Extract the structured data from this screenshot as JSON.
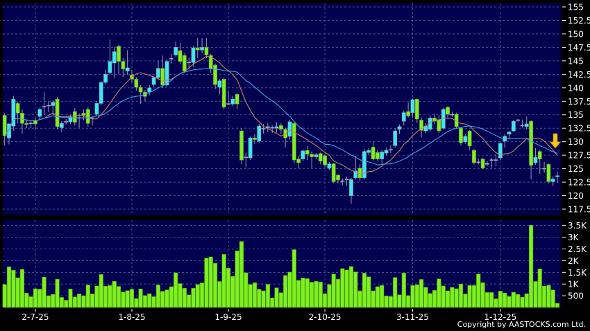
{
  "copyright": "Copyright by AASTOCKS.com Ltd.",
  "colors": {
    "panel_bg": "#00004e",
    "grid": "#5a64a8",
    "up": "#3ce8f0",
    "down": "#7ef01e",
    "doji": "#a8a8c8",
    "wick": "#9a9ab8",
    "volume": "#7ef01e",
    "ma_short": "#c8845a",
    "ma_long": "#3fa2e6",
    "arrow": "#f5c518"
  },
  "chart_data": [
    {
      "type": "candlestick",
      "ylim": [
        117.5,
        155
      ],
      "y_ticks": [
        "155",
        "152.5",
        "150",
        "147.5",
        "145",
        "142.5",
        "140",
        "137.5",
        "135",
        "132.5",
        "130",
        "127.5",
        "125",
        "122.5",
        "120",
        "117.5"
      ],
      "grid": true,
      "x_labels": [
        {
          "label": "2-7-25",
          "index": 7
        },
        {
          "label": "1-8-25",
          "index": 29
        },
        {
          "label": "1-9-25",
          "index": 51
        },
        {
          "label": "2-10-25",
          "index": 73
        },
        {
          "label": "3-11-25",
          "index": 93
        },
        {
          "label": "1-12-25",
          "index": 113
        }
      ],
      "moving_averages": [
        {
          "period": 10,
          "color": "#c8845a"
        },
        {
          "period": 20,
          "color": "#3fa2e6"
        }
      ],
      "signal": {
        "type": "down-arrow",
        "color": "#f5c518"
      },
      "ohlc": [
        [
          134.9,
          135.3,
          129.3,
          131.1
        ],
        [
          130.7,
          133.5,
          129.5,
          133.3
        ],
        [
          132.9,
          138.5,
          132.0,
          137.9
        ],
        [
          137.1,
          137.4,
          133.4,
          135.3
        ],
        [
          135.3,
          136.0,
          131.5,
          133.4
        ],
        [
          133.4,
          134.0,
          132.5,
          133.2
        ],
        [
          133.3,
          134.0,
          132.5,
          133.4
        ],
        [
          134.0,
          134.5,
          132.3,
          133.3
        ],
        [
          134.7,
          136.3,
          134.2,
          136.0
        ],
        [
          136.4,
          139.2,
          135.0,
          136.5
        ],
        [
          136.6,
          137.5,
          135.5,
          136.7
        ],
        [
          136.7,
          137.7,
          135.0,
          137.3
        ],
        [
          137.9,
          138.3,
          132.3,
          132.8
        ],
        [
          132.6,
          133.8,
          131.8,
          133.4
        ],
        [
          133.6,
          134.2,
          133.2,
          133.7
        ],
        [
          133.7,
          135.0,
          133.3,
          134.6
        ],
        [
          135.6,
          136.2,
          133.0,
          133.6
        ],
        [
          134.4,
          135.2,
          132.6,
          134.4
        ],
        [
          135.3,
          136.0,
          134.0,
          134.9
        ],
        [
          136.0,
          136.4,
          132.8,
          133.4
        ],
        [
          134.2,
          134.8,
          133.0,
          134.3
        ],
        [
          135.1,
          137.5,
          134.8,
          137.1
        ],
        [
          137.1,
          141.3,
          136.8,
          141.0
        ],
        [
          141.0,
          143.4,
          140.6,
          142.5
        ],
        [
          142.8,
          149.0,
          142.3,
          144.9
        ],
        [
          144.6,
          147.6,
          141.8,
          146.7
        ],
        [
          147.7,
          148.0,
          142.5,
          144.9
        ],
        [
          144.9,
          145.5,
          142.0,
          143.5
        ],
        [
          143.1,
          147.0,
          142.4,
          143.7
        ],
        [
          142.4,
          143.3,
          141.0,
          141.6
        ],
        [
          141.6,
          142.0,
          139.5,
          140.1
        ],
        [
          140.1,
          140.5,
          137.0,
          139.2
        ],
        [
          139.2,
          139.6,
          137.5,
          138.4
        ],
        [
          139.2,
          140.5,
          138.6,
          140.0
        ],
        [
          140.6,
          142.2,
          140.2,
          141.9
        ],
        [
          141.9,
          145.0,
          141.5,
          143.6
        ],
        [
          143.6,
          146.0,
          140.0,
          140.5
        ],
        [
          140.5,
          145.3,
          140.2,
          144.9
        ],
        [
          145.3,
          146.3,
          144.5,
          145.4
        ],
        [
          146.1,
          148.6,
          145.8,
          147.5
        ],
        [
          146.9,
          148.3,
          144.5,
          144.9
        ],
        [
          146.0,
          146.4,
          142.8,
          143.1
        ],
        [
          144.6,
          145.6,
          143.4,
          144.7
        ],
        [
          144.7,
          147.8,
          143.9,
          147.4
        ],
        [
          147.4,
          149.2,
          145.5,
          147.0
        ],
        [
          147.0,
          149.2,
          146.4,
          147.5
        ],
        [
          147.5,
          149.2,
          145.5,
          146.1
        ],
        [
          146.0,
          146.3,
          142.8,
          143.6
        ],
        [
          144.2,
          144.5,
          139.8,
          140.6
        ],
        [
          140.1,
          141.6,
          138.8,
          141.3
        ],
        [
          141.6,
          141.9,
          136.0,
          136.4
        ],
        [
          137.0,
          139.5,
          136.8,
          137.0
        ],
        [
          137.0,
          138.5,
          136.6,
          137.9
        ],
        [
          138.8,
          139.0,
          136.0,
          137.0
        ],
        [
          132.0,
          132.5,
          125.8,
          126.6
        ],
        [
          127.0,
          128.0,
          125.2,
          127.1
        ],
        [
          127.0,
          131.0,
          126.6,
          130.7
        ],
        [
          130.7,
          131.4,
          129.6,
          130.4
        ],
        [
          130.1,
          133.3,
          129.8,
          132.9
        ],
        [
          132.3,
          133.3,
          131.5,
          132.4
        ],
        [
          132.6,
          133.4,
          131.8,
          132.8
        ],
        [
          132.5,
          133.0,
          131.6,
          132.6
        ],
        [
          132.5,
          133.6,
          131.7,
          132.8
        ],
        [
          133.0,
          133.4,
          131.5,
          132.3
        ],
        [
          132.3,
          132.6,
          129.0,
          130.7
        ],
        [
          131.0,
          134.0,
          130.5,
          133.7
        ],
        [
          133.4,
          133.8,
          126.0,
          126.6
        ],
        [
          126.8,
          127.4,
          125.1,
          126.1
        ],
        [
          126.8,
          128.6,
          126.4,
          128.3
        ],
        [
          128.4,
          129.2,
          126.6,
          127.7
        ],
        [
          127.7,
          128.2,
          125.1,
          127.2
        ],
        [
          127.2,
          127.9,
          126.8,
          127.6
        ],
        [
          127.8,
          128.0,
          125.8,
          126.4
        ],
        [
          127.4,
          127.6,
          125.2,
          125.7
        ],
        [
          125.1,
          126.2,
          124.7,
          125.9
        ],
        [
          125.9,
          126.1,
          122.3,
          122.6
        ],
        [
          123.8,
          124.0,
          122.3,
          122.9
        ],
        [
          122.7,
          123.2,
          122.0,
          122.7
        ],
        [
          122.9,
          123.5,
          121.8,
          123.0
        ],
        [
          120.0,
          123.3,
          118.5,
          123.0
        ],
        [
          123.3,
          127.4,
          123.0,
          124.6
        ],
        [
          125.1,
          125.8,
          122.6,
          123.3
        ],
        [
          123.3,
          128.6,
          123.0,
          128.2
        ],
        [
          128.0,
          128.8,
          127.5,
          128.4
        ],
        [
          129.0,
          130.0,
          126.5,
          126.8
        ],
        [
          128.0,
          128.4,
          126.5,
          126.8
        ],
        [
          126.8,
          128.5,
          125.8,
          128.1
        ],
        [
          127.9,
          128.9,
          127.5,
          128.4
        ],
        [
          128.4,
          129.3,
          127.9,
          128.5
        ],
        [
          129.3,
          132.5,
          128.9,
          132.0
        ],
        [
          132.3,
          133.2,
          131.5,
          132.8
        ],
        [
          133.8,
          135.8,
          133.0,
          135.4
        ],
        [
          135.6,
          137.3,
          134.5,
          134.8
        ],
        [
          135.4,
          138.0,
          134.5,
          137.8
        ],
        [
          137.9,
          138.0,
          133.5,
          134.2
        ],
        [
          134.0,
          134.5,
          130.8,
          132.1
        ],
        [
          132.0,
          133.4,
          131.6,
          132.9
        ],
        [
          132.3,
          134.9,
          131.9,
          134.4
        ],
        [
          134.4,
          135.2,
          133.3,
          133.8
        ],
        [
          134.1,
          135.0,
          131.6,
          132.0
        ],
        [
          132.5,
          136.3,
          132.2,
          136.0
        ],
        [
          136.4,
          136.6,
          134.5,
          135.1
        ],
        [
          135.0,
          135.6,
          134.6,
          135.0
        ],
        [
          135.1,
          135.4,
          132.4,
          132.8
        ],
        [
          132.5,
          132.8,
          129.3,
          129.8
        ],
        [
          130.0,
          131.5,
          129.6,
          131.0
        ],
        [
          132.0,
          132.2,
          128.5,
          129.2
        ],
        [
          128.4,
          128.7,
          125.8,
          126.1
        ],
        [
          126.2,
          126.8,
          125.8,
          126.2
        ],
        [
          126.8,
          127.0,
          124.9,
          125.1
        ],
        [
          125.8,
          126.4,
          125.5,
          126.0
        ],
        [
          126.5,
          127.0,
          125.2,
          126.6
        ],
        [
          126.5,
          127.7,
          125.5,
          126.6
        ],
        [
          127.0,
          129.9,
          126.6,
          129.7
        ],
        [
          130.1,
          131.4,
          128.9,
          131.0
        ],
        [
          131.4,
          132.0,
          130.6,
          131.8
        ],
        [
          132.0,
          134.0,
          131.8,
          133.8
        ],
        [
          133.9,
          134.2,
          133.7,
          134.0
        ],
        [
          132.9,
          134.1,
          132.6,
          133.0
        ],
        [
          132.8,
          134.7,
          132.3,
          133.3
        ],
        [
          133.8,
          134.0,
          123.0,
          125.6
        ],
        [
          126.1,
          128.8,
          125.7,
          127.1
        ],
        [
          128.2,
          128.5,
          124.0,
          126.8
        ],
        [
          124.9,
          126.3,
          124.2,
          125.0
        ],
        [
          125.8,
          126.0,
          122.3,
          122.6
        ],
        [
          122.6,
          123.6,
          121.8,
          123.1
        ],
        [
          123.5,
          124.4,
          122.4,
          123.7
        ]
      ]
    },
    {
      "type": "bar",
      "ylim": [
        0,
        3500
      ],
      "y_ticks": [
        {
          "label": "3.5K",
          "value": 3500
        },
        {
          "label": "3K",
          "value": 3000
        },
        {
          "label": "2.5K",
          "value": 2500
        },
        {
          "label": "2K",
          "value": 2000
        },
        {
          "label": "1.5K",
          "value": 1500
        },
        {
          "label": "1K",
          "value": 1000
        },
        {
          "label": "500",
          "value": 500
        }
      ],
      "grid": true,
      "values": [
        980,
        1740,
        1590,
        1270,
        1630,
        610,
        460,
        800,
        780,
        1300,
        500,
        560,
        1210,
        430,
        310,
        790,
        450,
        580,
        500,
        960,
        580,
        920,
        1410,
        910,
        940,
        1120,
        900,
        660,
        720,
        780,
        380,
        790,
        510,
        590,
        460,
        960,
        690,
        750,
        890,
        1480,
        1020,
        820,
        540,
        820,
        980,
        1050,
        2110,
        2160,
        1890,
        1110,
        2270,
        1680,
        1330,
        2420,
        2820,
        1480,
        980,
        1060,
        780,
        710,
        990,
        410,
        840,
        630,
        1370,
        1510,
        2470,
        1160,
        1260,
        1230,
        1080,
        1120,
        1090,
        590,
        980,
        1430,
        1210,
        1660,
        1600,
        1750,
        1520,
        710,
        1470,
        1310,
        710,
        890,
        940,
        490,
        470,
        1280,
        540,
        1470,
        510,
        940,
        970,
        1200,
        860,
        600,
        730,
        1220,
        920,
        710,
        860,
        800,
        1000,
        580,
        940,
        940,
        1430,
        1060,
        640,
        640,
        370,
        700,
        620,
        470,
        650,
        560,
        440,
        590,
        3510,
        1110,
        1650,
        910,
        950,
        750,
        180
      ]
    }
  ]
}
